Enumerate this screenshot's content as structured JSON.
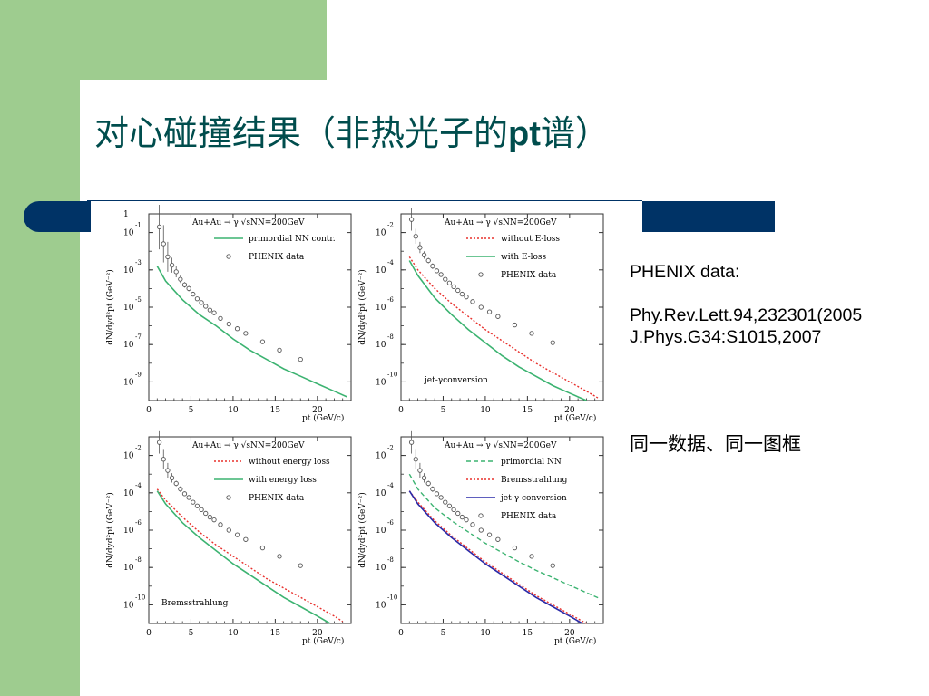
{
  "title": {
    "main": "对心碰撞结果（非热光子的",
    "pt": "pt",
    "tail": "谱）"
  },
  "notes": {
    "line1": "PHENIX data:",
    "line2": "Phy.Rev.Lett.94,232301(2005",
    "line3": "J.Phys.G34:S1015,2007",
    "cn": "同一数据、同一图框"
  },
  "colors": {
    "green": "#3cb371",
    "red": "#e8302c",
    "blue": "#2a2aa8",
    "navy": "#003366",
    "sidebar": "#9ecc8f"
  },
  "chart_data": [
    {
      "type": "line",
      "header": "Au+Au → γ √sNN=200GeV",
      "xlabel": "pt (GeV/c)",
      "ylabel": "dN/dyd²pt (GeV⁻²)",
      "xlim": [
        0,
        24
      ],
      "ylim": [
        -10,
        0
      ],
      "y_log": true,
      "x_ticks": [
        "0",
        "5",
        "10",
        "15",
        "20"
      ],
      "y_ticks": [
        {
          "base": "1",
          "exp": ""
        },
        {
          "base": "10",
          "exp": "-1"
        },
        {
          "base": "10",
          "exp": "-3"
        },
        {
          "base": "10",
          "exp": "-5"
        },
        {
          "base": "10",
          "exp": "-7"
        },
        {
          "base": "10",
          "exp": "-9"
        }
      ],
      "legend": [
        {
          "label": "primordial NN contr.",
          "style": "green-solid"
        },
        {
          "label": "PHENIX data",
          "style": "marker"
        }
      ],
      "series": [
        {
          "name": "primordial NN contr.",
          "color": "green",
          "dash": false,
          "x": [
            1,
            2,
            4,
            6,
            8,
            10,
            12,
            14,
            16,
            18,
            20,
            22,
            23.5
          ],
          "y": [
            -2.8,
            -3.6,
            -4.6,
            -5.4,
            -6.0,
            -6.7,
            -7.3,
            -7.8,
            -8.3,
            -8.7,
            -9.1,
            -9.5,
            -9.8
          ]
        }
      ],
      "data": {
        "x": [
          1.25,
          1.75,
          2.25,
          2.75,
          3.25,
          3.75,
          4.25,
          4.75,
          5.25,
          5.75,
          6.25,
          6.75,
          7.25,
          7.75,
          8.5,
          9.5,
          10.5,
          11.5,
          13.5,
          15.5,
          18
        ],
        "y": [
          -0.7,
          -1.6,
          -2.3,
          -2.75,
          -3.1,
          -3.5,
          -3.8,
          -4.0,
          -4.3,
          -4.55,
          -4.75,
          -4.95,
          -5.15,
          -5.3,
          -5.6,
          -5.9,
          -6.15,
          -6.4,
          -6.85,
          -7.3,
          -7.8
        ],
        "err": [
          1.2,
          1.0,
          0.8,
          0.4,
          0.3,
          0.2,
          0.15,
          0.15,
          0.1,
          0.1,
          0.1,
          0.1,
          0.1,
          0.1,
          0.1,
          0.1,
          0.1,
          0.1,
          0.1,
          0.1,
          0.1
        ]
      }
    },
    {
      "type": "line",
      "header": "Au+Au → γ √sNN=200GeV",
      "xlabel": "pt (GeV/c)",
      "ylabel": "dN/dyd²pt (GeV⁻²)",
      "xlim": [
        0,
        24
      ],
      "ylim": [
        -11,
        -1
      ],
      "y_log": true,
      "x_ticks": [
        "0",
        "5",
        "10",
        "15",
        "20"
      ],
      "y_ticks": [
        {
          "base": "10",
          "exp": "-2"
        },
        {
          "base": "10",
          "exp": "-4"
        },
        {
          "base": "10",
          "exp": "-6"
        },
        {
          "base": "10",
          "exp": "-8"
        },
        {
          "base": "10",
          "exp": "-10"
        }
      ],
      "legend": [
        {
          "label": "without E-loss",
          "style": "red-dotted"
        },
        {
          "label": "with E-loss",
          "style": "green-solid"
        },
        {
          "label": "PHENIX data",
          "style": "marker"
        }
      ],
      "annotation": "jet-γconversion",
      "series": [
        {
          "name": "without E-loss",
          "color": "red",
          "dash": true,
          "x": [
            1,
            2,
            4,
            6,
            8,
            10,
            12,
            14,
            16,
            18,
            20,
            22,
            23.5
          ],
          "y": [
            -3.3,
            -4.0,
            -5.0,
            -5.8,
            -6.5,
            -7.2,
            -7.8,
            -8.4,
            -9.0,
            -9.5,
            -10.0,
            -10.5,
            -10.9
          ]
        },
        {
          "name": "with E-loss",
          "color": "green",
          "dash": false,
          "x": [
            1,
            2,
            4,
            6,
            8,
            10,
            12,
            14,
            16,
            18,
            20,
            22
          ],
          "y": [
            -3.5,
            -4.3,
            -5.5,
            -6.4,
            -7.2,
            -7.9,
            -8.6,
            -9.2,
            -9.7,
            -10.2,
            -10.6,
            -11.0
          ]
        }
      ],
      "data": {
        "x": [
          1.25,
          1.75,
          2.25,
          2.75,
          3.25,
          3.75,
          4.25,
          4.75,
          5.25,
          5.75,
          6.25,
          6.75,
          7.25,
          7.75,
          8.5,
          9.5,
          10.5,
          11.5,
          13.5,
          15.5,
          18
        ],
        "y": [
          -1.3,
          -2.2,
          -2.8,
          -3.2,
          -3.5,
          -3.8,
          -4.05,
          -4.25,
          -4.5,
          -4.7,
          -4.9,
          -5.1,
          -5.3,
          -5.45,
          -5.7,
          -6.0,
          -6.25,
          -6.5,
          -6.95,
          -7.4,
          -7.9
        ],
        "err": [
          0.6,
          0.4,
          0.3,
          0.2,
          0.15,
          0.15,
          0.1,
          0.1,
          0.1,
          0.1,
          0.1,
          0.1,
          0.1,
          0.1,
          0.1,
          0.1,
          0.1,
          0.1,
          0.1,
          0.1,
          0.1
        ]
      }
    },
    {
      "type": "line",
      "header": "Au+Au → γ √sNN=200GeV",
      "xlabel": "pt (GeV/c)",
      "ylabel": "dN/dyd²pt (GeV⁻²)",
      "xlim": [
        0,
        24
      ],
      "ylim": [
        -11,
        -1
      ],
      "y_log": true,
      "x_ticks": [
        "0",
        "5",
        "10",
        "15",
        "20"
      ],
      "y_ticks": [
        {
          "base": "10",
          "exp": "-2"
        },
        {
          "base": "10",
          "exp": "-4"
        },
        {
          "base": "10",
          "exp": "-6"
        },
        {
          "base": "10",
          "exp": "-8"
        },
        {
          "base": "10",
          "exp": "-10"
        }
      ],
      "legend": [
        {
          "label": "without energy loss",
          "style": "red-dotted"
        },
        {
          "label": "with energy loss",
          "style": "green-solid"
        },
        {
          "label": "PHENIX data",
          "style": "marker"
        }
      ],
      "annotation": "Bremsstrahlung",
      "series": [
        {
          "name": "without energy loss",
          "color": "red",
          "dash": true,
          "x": [
            1,
            2,
            4,
            6,
            8,
            10,
            12,
            14,
            16,
            18,
            20,
            22,
            23
          ],
          "y": [
            -3.8,
            -4.4,
            -5.3,
            -6.1,
            -6.8,
            -7.4,
            -8.0,
            -8.6,
            -9.1,
            -9.6,
            -10.1,
            -10.6,
            -10.9
          ]
        },
        {
          "name": "with energy loss",
          "color": "green",
          "dash": false,
          "x": [
            1,
            2,
            4,
            6,
            8,
            10,
            12,
            14,
            16,
            18,
            20,
            21.5
          ],
          "y": [
            -3.9,
            -4.6,
            -5.6,
            -6.4,
            -7.1,
            -7.8,
            -8.4,
            -9.0,
            -9.6,
            -10.1,
            -10.6,
            -11.0
          ]
        }
      ],
      "data": {
        "x": [
          1.25,
          1.75,
          2.25,
          2.75,
          3.25,
          3.75,
          4.25,
          4.75,
          5.25,
          5.75,
          6.25,
          6.75,
          7.25,
          7.75,
          8.5,
          9.5,
          10.5,
          11.5,
          13.5,
          15.5,
          18
        ],
        "y": [
          -1.3,
          -2.2,
          -2.8,
          -3.2,
          -3.5,
          -3.8,
          -4.05,
          -4.25,
          -4.5,
          -4.7,
          -4.9,
          -5.1,
          -5.3,
          -5.45,
          -5.7,
          -6.0,
          -6.25,
          -6.5,
          -6.95,
          -7.4,
          -7.9
        ],
        "err": [
          0.6,
          0.5,
          0.4,
          0.25,
          0.15,
          0.15,
          0.1,
          0.1,
          0.1,
          0.1,
          0.1,
          0.1,
          0.1,
          0.1,
          0.1,
          0.1,
          0.1,
          0.1,
          0.1,
          0.1,
          0.1
        ]
      }
    },
    {
      "type": "line",
      "header": "Au+Au → γ √sNN=200GeV",
      "xlabel": "pt (GeV/c)",
      "ylabel": "dN/dyd²pt (GeV⁻²)",
      "xlim": [
        0,
        24
      ],
      "ylim": [
        -11,
        -1
      ],
      "y_log": true,
      "x_ticks": [
        "0",
        "5",
        "10",
        "15",
        "20"
      ],
      "y_ticks": [
        {
          "base": "10",
          "exp": "-2"
        },
        {
          "base": "10",
          "exp": "-4"
        },
        {
          "base": "10",
          "exp": "-6"
        },
        {
          "base": "10",
          "exp": "-8"
        },
        {
          "base": "10",
          "exp": "-10"
        }
      ],
      "legend": [
        {
          "label": "primordial NN",
          "style": "green-dashed"
        },
        {
          "label": "Bremsstrahlung",
          "style": "red-dotted"
        },
        {
          "label": "jet-γ conversion",
          "style": "blue-solid"
        },
        {
          "label": "PHENIX data",
          "style": "marker"
        }
      ],
      "series": [
        {
          "name": "primordial NN",
          "color": "green",
          "dash": true,
          "x": [
            1,
            2,
            4,
            6,
            8,
            10,
            12,
            14,
            16,
            18,
            20,
            22,
            23.5
          ],
          "y": [
            -3.0,
            -3.8,
            -4.8,
            -5.5,
            -6.1,
            -6.7,
            -7.2,
            -7.7,
            -8.15,
            -8.55,
            -8.95,
            -9.35,
            -9.65
          ]
        },
        {
          "name": "Bremsstrahlung",
          "color": "red",
          "dash": true,
          "x": [
            1,
            2,
            4,
            6,
            8,
            10,
            12,
            14,
            16,
            18,
            20,
            22
          ],
          "y": [
            -3.9,
            -4.5,
            -5.5,
            -6.3,
            -7.0,
            -7.7,
            -8.3,
            -8.9,
            -9.5,
            -10.0,
            -10.5,
            -11.0
          ]
        },
        {
          "name": "jet-γ conversion",
          "color": "blue",
          "dash": false,
          "x": [
            1,
            2,
            4,
            6,
            8,
            10,
            12,
            14,
            16,
            18,
            20,
            21.5
          ],
          "y": [
            -3.9,
            -4.6,
            -5.6,
            -6.4,
            -7.1,
            -7.8,
            -8.4,
            -9.0,
            -9.6,
            -10.1,
            -10.6,
            -11.0
          ]
        }
      ],
      "data": {
        "x": [
          1.25,
          1.75,
          2.25,
          2.75,
          3.25,
          3.75,
          4.25,
          4.75,
          5.25,
          5.75,
          6.25,
          6.75,
          7.25,
          7.75,
          8.5,
          9.5,
          10.5,
          11.5,
          13.5,
          15.5,
          18
        ],
        "y": [
          -1.3,
          -2.2,
          -2.8,
          -3.2,
          -3.5,
          -3.8,
          -4.05,
          -4.25,
          -4.5,
          -4.7,
          -4.9,
          -5.1,
          -5.3,
          -5.45,
          -5.7,
          -6.0,
          -6.25,
          -6.5,
          -6.95,
          -7.4,
          -7.9
        ],
        "err": [
          0.6,
          0.5,
          0.4,
          0.25,
          0.15,
          0.15,
          0.1,
          0.1,
          0.1,
          0.1,
          0.1,
          0.1,
          0.1,
          0.1,
          0.1,
          0.1,
          0.1,
          0.1,
          0.1,
          0.1,
          0.1
        ]
      }
    }
  ]
}
